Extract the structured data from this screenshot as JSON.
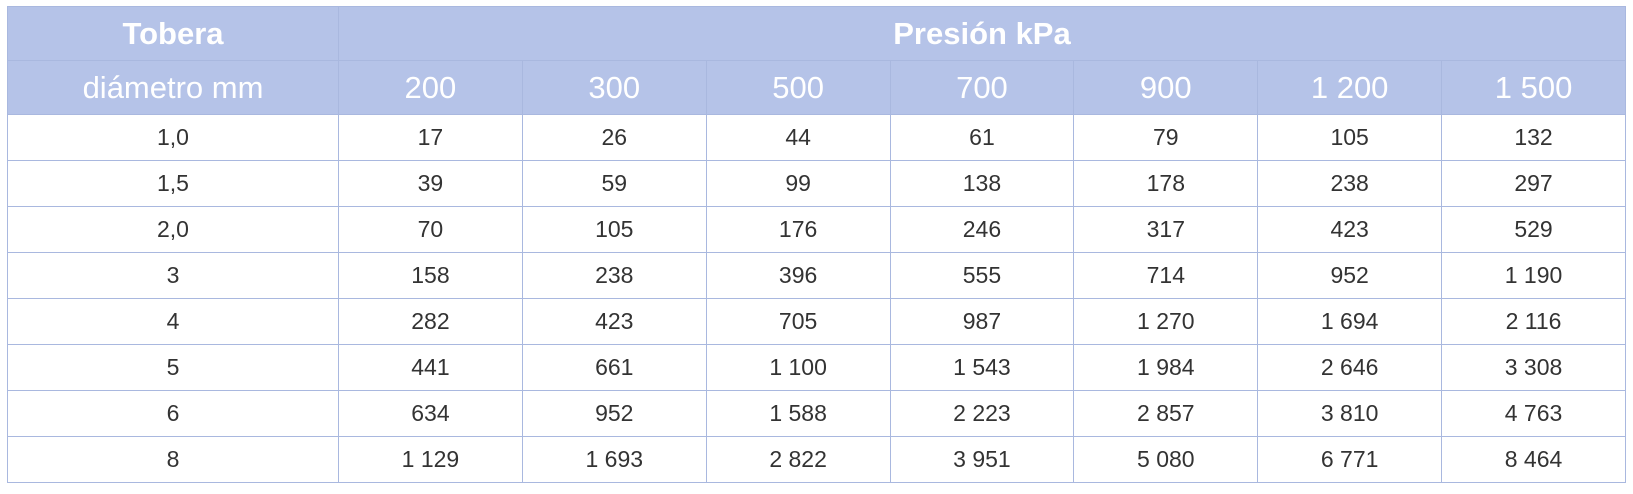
{
  "header": {
    "nozzle": "Tobera",
    "diameter": "diámetro mm",
    "group": "Presión kPa",
    "pressures": [
      "200",
      "300",
      "500",
      "700",
      "900",
      "1 200",
      "1 500"
    ]
  },
  "table": {
    "rows": [
      [
        "1,0",
        "17",
        "26",
        "44",
        "61",
        "79",
        "105",
        "132"
      ],
      [
        "1,5",
        "39",
        "59",
        "99",
        "138",
        "178",
        "238",
        "297"
      ],
      [
        "2,0",
        "70",
        "105",
        "176",
        "246",
        "317",
        "423",
        "529"
      ],
      [
        "3",
        "158",
        "238",
        "396",
        "555",
        "714",
        "952",
        "1 190"
      ],
      [
        "4",
        "282",
        "423",
        "705",
        "987",
        "1 270",
        "1 694",
        "2 116"
      ],
      [
        "5",
        "441",
        "661",
        "1 100",
        "1 543",
        "1 984",
        "2 646",
        "3 308"
      ],
      [
        "6",
        "634",
        "952",
        "1 588",
        "2 223",
        "2 857",
        "3 810",
        "4 763"
      ],
      [
        "8",
        "1 129",
        "1 693",
        "2 822",
        "3 951",
        "5 080",
        "6 771",
        "8 464"
      ]
    ]
  }
}
